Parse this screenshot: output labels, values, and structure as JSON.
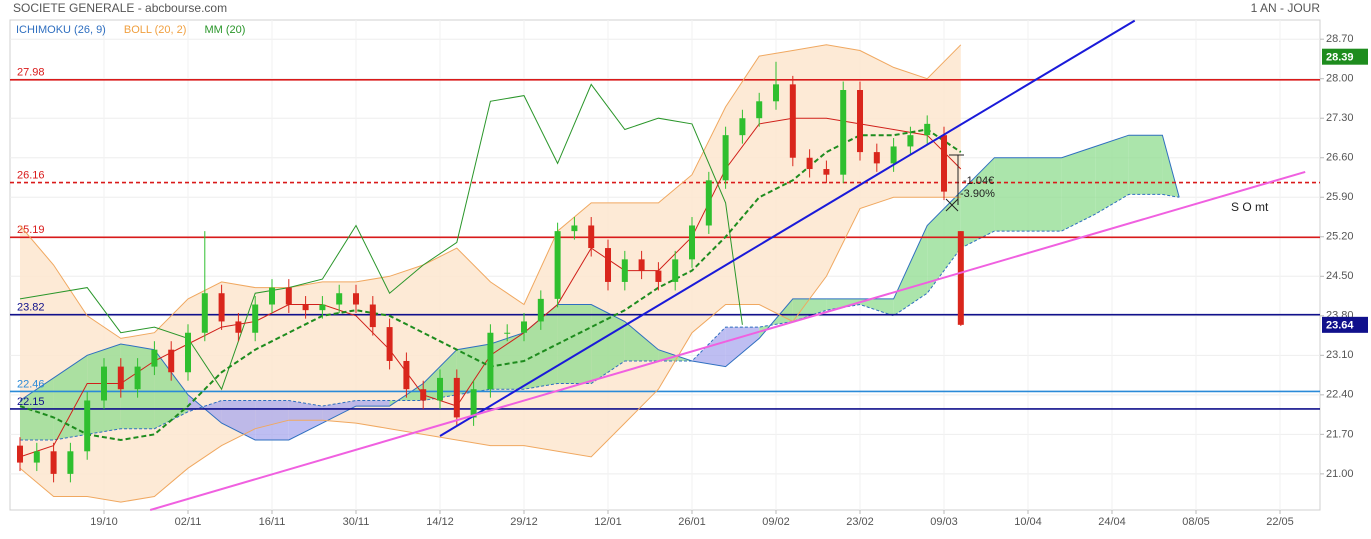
{
  "chart_data": {
    "type": "candlestick",
    "title": "SOCIETE GENERALE - abcbourse.com",
    "period": "1 AN - JOUR",
    "indicators": [
      {
        "name": "ICHIMOKU (26, 9)",
        "color": "#2f6fc0"
      },
      {
        "name": "BOLL (20, 2)",
        "color": "#f0a040"
      },
      {
        "name": "MM (20)",
        "color": "#2a962a"
      }
    ],
    "xlim": [
      -1.19,
      154.76
    ],
    "ylim": [
      20.36,
      29.04
    ],
    "xticks": [
      {
        "value": 10,
        "label": "19/10"
      },
      {
        "value": 20,
        "label": "02/11"
      },
      {
        "value": 30,
        "label": "16/11"
      },
      {
        "value": 40,
        "label": "30/11"
      },
      {
        "value": 50,
        "label": "14/12"
      },
      {
        "value": 60,
        "label": "29/12"
      },
      {
        "value": 70,
        "label": "12/01"
      },
      {
        "value": 80,
        "label": "26/01"
      },
      {
        "value": 90,
        "label": "09/02"
      },
      {
        "value": 100,
        "label": "23/02"
      },
      {
        "value": 110,
        "label": "09/03"
      },
      {
        "value": 120,
        "label": "10/04"
      },
      {
        "value": 130,
        "label": "24/04"
      },
      {
        "value": 140,
        "label": "08/05"
      },
      {
        "value": 150,
        "label": "22/05"
      }
    ],
    "yticks": [
      {
        "value": 28.7,
        "label": "28.70"
      },
      {
        "value": 28.0,
        "label": "28.00"
      },
      {
        "value": 27.3,
        "label": "27.30"
      },
      {
        "value": 26.6,
        "label": "26.60"
      },
      {
        "value": 25.9,
        "label": "25.90"
      },
      {
        "value": 25.2,
        "label": "25.20"
      },
      {
        "value": 24.5,
        "label": "24.50"
      },
      {
        "value": 23.8,
        "label": "23.80"
      },
      {
        "value": 23.1,
        "label": "23.10"
      },
      {
        "value": 22.4,
        "label": "22.40"
      },
      {
        "value": 21.7,
        "label": "21.70"
      },
      {
        "value": 21.0,
        "label": "21.00"
      }
    ],
    "grid": true,
    "up_color": "#2fbf2f",
    "down_color": "#d9261c",
    "x": [
      0,
      2,
      4,
      6,
      8,
      10,
      12,
      14,
      16,
      18,
      20,
      22,
      24,
      26,
      28,
      30,
      32,
      34,
      36,
      38,
      40,
      42,
      44,
      46,
      48,
      50,
      52,
      54,
      56,
      58,
      60,
      62,
      64,
      66,
      68,
      70,
      72,
      74,
      76,
      78,
      80,
      82,
      84,
      86,
      88,
      90,
      92,
      94,
      96,
      98,
      100,
      102,
      104,
      106,
      108,
      110,
      112
    ],
    "open": [
      21.5,
      21.2,
      21.4,
      21.0,
      21.4,
      22.3,
      22.9,
      22.5,
      22.9,
      23.2,
      22.8,
      23.5,
      24.2,
      23.7,
      23.5,
      24.0,
      24.3,
      24.0,
      23.9,
      24.0,
      24.2,
      24.0,
      23.6,
      23.0,
      22.5,
      22.3,
      22.7,
      22.0,
      22.5,
      23.5,
      23.5,
      23.7,
      24.1,
      25.3,
      25.4,
      25.0,
      24.4,
      24.8,
      24.6,
      24.4,
      24.8,
      25.4,
      26.2,
      27.0,
      27.3,
      27.6,
      27.9,
      26.6,
      26.4,
      26.3,
      27.8,
      26.7,
      26.5,
      26.8,
      27.0,
      27.0,
      25.3
    ],
    "high": [
      21.65,
      21.55,
      21.55,
      21.55,
      22.45,
      23.05,
      23.05,
      23.05,
      23.35,
      23.35,
      23.65,
      25.3,
      24.35,
      23.85,
      24.15,
      24.45,
      24.45,
      24.15,
      24.15,
      24.35,
      24.35,
      24.15,
      23.75,
      23.15,
      22.65,
      22.85,
      22.85,
      22.65,
      23.65,
      23.65,
      23.85,
      24.25,
      25.45,
      25.55,
      25.55,
      25.15,
      24.95,
      24.95,
      24.75,
      24.95,
      25.55,
      26.35,
      27.15,
      27.45,
      27.75,
      28.3,
      28.05,
      26.75,
      26.55,
      27.95,
      27.95,
      26.85,
      26.95,
      27.15,
      27.35,
      27.15,
      25.3
    ],
    "low": [
      21.05,
      21.05,
      20.85,
      20.85,
      21.25,
      22.15,
      22.35,
      22.35,
      22.75,
      22.65,
      22.65,
      23.35,
      23.55,
      23.35,
      23.35,
      23.85,
      23.85,
      23.75,
      23.75,
      23.85,
      23.85,
      23.45,
      22.85,
      22.35,
      22.15,
      22.15,
      21.85,
      21.85,
      22.35,
      23.35,
      23.35,
      23.55,
      23.95,
      25.15,
      24.85,
      24.25,
      24.25,
      24.45,
      24.25,
      24.25,
      24.65,
      25.25,
      26.05,
      26.85,
      27.15,
      27.45,
      26.45,
      26.25,
      26.15,
      26.15,
      26.55,
      26.35,
      26.35,
      26.65,
      26.85,
      25.85,
      23.62
    ],
    "close": [
      21.2,
      21.4,
      21.0,
      21.4,
      22.3,
      22.9,
      22.5,
      22.9,
      23.2,
      22.8,
      23.5,
      24.2,
      23.7,
      23.5,
      24.0,
      24.3,
      24.0,
      23.9,
      24.0,
      24.2,
      24.0,
      23.6,
      23.0,
      22.5,
      22.3,
      22.7,
      22.0,
      22.5,
      23.5,
      23.5,
      23.7,
      24.1,
      25.3,
      25.4,
      25.0,
      24.4,
      24.8,
      24.6,
      24.4,
      24.8,
      25.4,
      26.2,
      27.0,
      27.3,
      27.6,
      27.9,
      26.6,
      26.4,
      26.3,
      27.8,
      26.7,
      26.5,
      26.8,
      27.0,
      27.2,
      26.0,
      23.64
    ],
    "bollinger": {
      "x": [
        0,
        4,
        8,
        12,
        16,
        20,
        24,
        28,
        32,
        36,
        40,
        44,
        48,
        52,
        56,
        60,
        64,
        68,
        72,
        76,
        80,
        84,
        88,
        92,
        96,
        100,
        104,
        108,
        112
      ],
      "upper": [
        25.4,
        24.7,
        23.8,
        23.4,
        23.5,
        24.1,
        24.4,
        24.3,
        24.3,
        24.4,
        24.4,
        24.5,
        24.7,
        25.0,
        24.4,
        24.0,
        25.3,
        25.8,
        25.8,
        25.8,
        26.3,
        27.5,
        28.4,
        28.5,
        28.6,
        28.5,
        28.2,
        28.0,
        28.6
      ],
      "lower": [
        21.1,
        20.6,
        20.6,
        20.5,
        20.6,
        21.1,
        21.5,
        21.8,
        21.95,
        21.95,
        21.9,
        21.8,
        21.7,
        21.6,
        21.5,
        21.5,
        21.4,
        21.3,
        21.9,
        22.5,
        23.5,
        24.0,
        24.0,
        23.7,
        24.5,
        25.7,
        25.9,
        25.9,
        25.9
      ],
      "color": "#f0a860",
      "fill": "#fde6cf"
    },
    "mm": {
      "x": [
        0,
        4,
        8,
        12,
        16,
        20,
        24,
        28,
        32,
        36,
        40,
        44,
        48,
        52,
        56,
        60,
        64,
        68,
        72,
        76,
        80,
        84,
        88,
        92,
        96,
        100,
        104,
        108,
        112
      ],
      "values": [
        22.2,
        22.0,
        21.7,
        21.6,
        21.7,
        22.2,
        22.8,
        23.2,
        23.5,
        23.8,
        23.9,
        23.8,
        23.5,
        23.2,
        22.9,
        23.0,
        23.3,
        23.6,
        23.9,
        24.3,
        24.6,
        25.2,
        25.9,
        26.2,
        26.7,
        27.0,
        27.0,
        27.1,
        26.7
      ],
      "color": "#1e8c1e"
    },
    "tenkan": {
      "x": [
        0,
        4,
        8,
        12,
        16,
        20,
        24,
        28,
        32,
        36,
        40,
        44,
        48,
        52,
        56,
        60,
        64,
        68,
        72,
        76,
        80,
        84,
        88,
        92,
        96,
        100,
        104,
        108,
        112
      ],
      "values": [
        21.3,
        21.5,
        22.6,
        22.6,
        23.0,
        23.3,
        23.6,
        23.7,
        24.0,
        24.0,
        23.8,
        23.2,
        22.4,
        22.2,
        23.1,
        23.5,
        24.0,
        25.0,
        24.6,
        24.6,
        25.2,
        26.4,
        27.2,
        27.3,
        27.3,
        27.2,
        27.1,
        27.0,
        26.4
      ],
      "color": "#d0201a"
    },
    "chikou": {
      "x": [
        0,
        4,
        8,
        12,
        16,
        20,
        24,
        28,
        32,
        36,
        40,
        44,
        48,
        52,
        56,
        60,
        64,
        68,
        72,
        76,
        80,
        84,
        86
      ],
      "values": [
        24.1,
        24.2,
        24.3,
        23.5,
        23.6,
        23.4,
        22.5,
        24.2,
        24.3,
        24.45,
        25.4,
        24.2,
        24.7,
        25.1,
        27.6,
        27.7,
        26.5,
        27.9,
        27.1,
        27.3,
        27.2,
        25.8,
        23.64
      ],
      "color": "#2a962a"
    },
    "cloud": {
      "x": [
        0,
        4,
        8,
        12,
        16,
        20,
        24,
        28,
        32,
        36,
        40,
        44,
        48,
        52,
        56,
        60,
        64,
        68,
        72,
        76,
        80,
        84,
        88,
        92,
        96,
        100,
        104,
        108,
        112,
        116,
        120,
        124,
        128,
        132,
        136,
        138
      ],
      "span_a": [
        22.3,
        22.7,
        23.1,
        23.3,
        23.2,
        22.4,
        21.9,
        21.6,
        21.6,
        21.9,
        22.2,
        22.2,
        22.6,
        23.2,
        23.3,
        23.5,
        24.0,
        24.0,
        23.7,
        23.2,
        23.0,
        22.9,
        23.4,
        24.1,
        24.1,
        24.1,
        24.1,
        25.4,
        26.0,
        26.6,
        26.6,
        26.6,
        26.8,
        27.0,
        27.0,
        25.9
      ],
      "span_b": [
        21.6,
        21.6,
        21.7,
        21.8,
        21.8,
        22.1,
        22.3,
        22.3,
        22.3,
        22.2,
        22.3,
        22.3,
        22.3,
        22.4,
        22.5,
        22.5,
        22.6,
        22.6,
        23.0,
        23.0,
        23.0,
        23.6,
        23.6,
        23.7,
        23.9,
        24.0,
        23.8,
        24.2,
        25.0,
        25.3,
        25.3,
        25.3,
        25.6,
        25.95,
        25.95,
        25.9
      ],
      "up_color": "#8fdc8f",
      "down_color": "#a8a8ee",
      "line_color": "#2f6fc0"
    },
    "levels": [
      {
        "value": 27.98,
        "color": "#d91a1a",
        "dashed": false
      },
      {
        "value": 26.16,
        "color": "#d91a1a",
        "dashed": true
      },
      {
        "value": 25.19,
        "color": "#d91a1a",
        "dashed": false
      },
      {
        "value": 23.82,
        "color": "#10108c",
        "dashed": false
      },
      {
        "value": 22.46,
        "color": "#2a8ad8",
        "dashed": false
      },
      {
        "value": 22.15,
        "color": "#10108c",
        "dashed": false
      }
    ],
    "trendlines": [
      {
        "x": [
          50,
          132.7
        ],
        "values": [
          21.67,
          29.03
        ],
        "color": "#1a1ad9"
      },
      {
        "x": [
          15.5,
          153
        ],
        "values": [
          20.36,
          26.35
        ],
        "color": "#f060e0"
      }
    ],
    "price_badges": [
      {
        "value": 28.39,
        "color": "#1e8c1e"
      },
      {
        "value": 23.64,
        "color": "#10108c"
      }
    ],
    "annotations": [
      "-1.04€",
      "-3.90%",
      "S O mt"
    ]
  }
}
